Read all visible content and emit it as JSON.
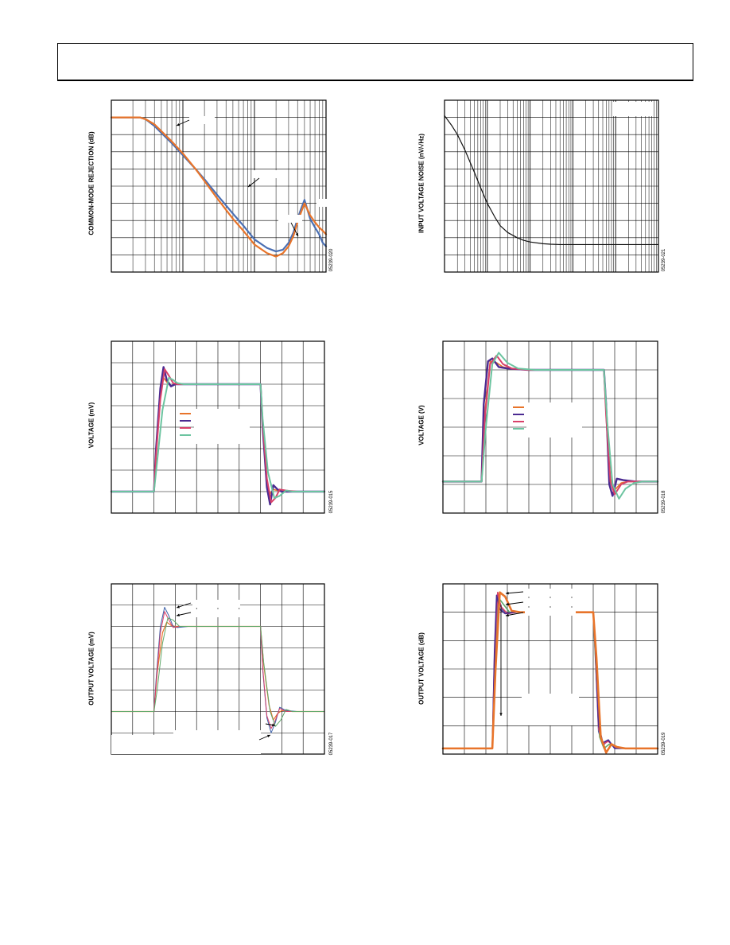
{
  "page": {
    "header": ""
  },
  "chart_data": [
    {
      "id": "cmr",
      "type": "line",
      "ylabel": "COMMON-MODE REJECTION (dB)",
      "figure_code": "05239-020",
      "xscale": "log",
      "grid": true,
      "xlim": [
        1,
        1000
      ],
      "ylim": [
        0,
        10
      ],
      "series": [
        {
          "color": "#4a6fb3",
          "width": 2.2,
          "x": [
            1,
            1.5,
            2,
            2.5,
            3,
            4,
            5,
            7,
            10,
            15,
            20,
            30,
            50,
            70,
            100,
            150,
            200,
            250,
            300,
            350,
            400,
            450,
            500,
            600,
            700,
            800,
            900,
            1000
          ],
          "y": [
            9,
            9,
            9,
            9,
            8.9,
            8.5,
            8.1,
            7.5,
            6.8,
            6,
            5.4,
            4.5,
            3.4,
            2.7,
            1.9,
            1.4,
            1.2,
            1.3,
            1.7,
            2.3,
            3.1,
            3.7,
            4.2,
            3.1,
            2.6,
            2.2,
            1.7,
            1.5
          ]
        },
        {
          "color": "#e8742a",
          "width": 2.2,
          "x": [
            1,
            1.5,
            2,
            2.5,
            3,
            4,
            5,
            7,
            10,
            15,
            20,
            30,
            50,
            70,
            100,
            150,
            200,
            250,
            300,
            350,
            400,
            450,
            500,
            600,
            700,
            800,
            900,
            1000
          ],
          "y": [
            9,
            9,
            9,
            9,
            8.9,
            8.6,
            8.2,
            7.6,
            6.9,
            6,
            5.3,
            4.3,
            3.1,
            2.4,
            1.6,
            1.1,
            0.9,
            1.1,
            1.5,
            2.1,
            2.9,
            3.5,
            4.0,
            3.3,
            2.9,
            2.6,
            2.4,
            2.2
          ]
        }
      ]
    },
    {
      "id": "noise",
      "type": "line",
      "ylabel": "INPUT VOLTAGE NOISE (nV/√Hz)",
      "figure_code": "05239-021",
      "xscale": "log",
      "grid": true,
      "xlim": [
        1,
        100000
      ],
      "ylim": [
        0,
        10
      ],
      "series": [
        {
          "color": "#111111",
          "width": 1.2,
          "x": [
            1,
            1.5,
            2,
            3,
            5,
            7,
            10,
            15,
            20,
            30,
            50,
            70,
            100,
            200,
            300,
            500,
            1000,
            3000,
            10000,
            30000,
            100000
          ],
          "y": [
            9.1,
            8.5,
            8.0,
            7.1,
            5.8,
            4.9,
            4.0,
            3.2,
            2.7,
            2.3,
            2.0,
            1.85,
            1.75,
            1.65,
            1.62,
            1.6,
            1.6,
            1.6,
            1.6,
            1.6,
            1.6
          ]
        }
      ]
    },
    {
      "id": "step-mv",
      "type": "line",
      "ylabel": "VOLTAGE (mV)",
      "figure_code": "05239-015",
      "grid": true,
      "xlim": [
        0,
        10
      ],
      "ylim": [
        0,
        8
      ],
      "series": [
        {
          "color": "#e8742a",
          "width": 1.6,
          "x": [
            0,
            2.0,
            2.1,
            2.3,
            2.45,
            2.6,
            2.8,
            3.0,
            3.5,
            7.0,
            7.1,
            7.3,
            7.45,
            7.6,
            7.8,
            8.0,
            8.5,
            10
          ],
          "y": [
            1.0,
            1.0,
            3.0,
            5.6,
            6.3,
            6.1,
            5.9,
            6.0,
            6.0,
            6.0,
            4.0,
            1.4,
            0.9,
            1.1,
            1.05,
            1.0,
            1.0,
            1.0
          ]
        },
        {
          "color": "#4b2a91",
          "width": 2.4,
          "x": [
            0,
            2.0,
            2.1,
            2.3,
            2.45,
            2.6,
            2.8,
            3.0,
            3.5,
            7.0,
            7.1,
            7.3,
            7.45,
            7.6,
            7.8,
            8.0,
            8.5,
            10
          ],
          "y": [
            1.0,
            1.0,
            3.0,
            5.8,
            6.8,
            6.2,
            5.9,
            6.0,
            6.0,
            6.0,
            4.0,
            1.2,
            0.4,
            1.3,
            1.1,
            1.0,
            1.0,
            1.0
          ]
        },
        {
          "color": "#d9416a",
          "width": 2.0,
          "x": [
            0,
            2.0,
            2.1,
            2.3,
            2.5,
            2.7,
            2.9,
            3.1,
            3.6,
            7.0,
            7.1,
            7.3,
            7.5,
            7.7,
            7.9,
            8.2,
            8.7,
            10
          ],
          "y": [
            1.0,
            1.0,
            2.7,
            5.3,
            6.7,
            6.4,
            6.05,
            6.0,
            6.0,
            6.0,
            4.2,
            1.6,
            0.5,
            0.7,
            1.1,
            1.05,
            1.0,
            1.0
          ]
        },
        {
          "color": "#6cc4a0",
          "width": 2.0,
          "x": [
            0,
            2.0,
            2.15,
            2.4,
            2.7,
            2.9,
            3.1,
            3.4,
            3.8,
            7.0,
            7.1,
            7.35,
            7.65,
            7.9,
            8.2,
            8.5,
            9.0,
            10
          ],
          "y": [
            1.0,
            1.0,
            2.4,
            4.8,
            6.3,
            6.2,
            6.05,
            6.0,
            6.0,
            6.0,
            4.4,
            1.9,
            0.7,
            0.8,
            1.05,
            1.0,
            1.0,
            1.0
          ]
        }
      ]
    },
    {
      "id": "step-v",
      "type": "line",
      "ylabel": "VOLTAGE (V)",
      "figure_code": "05239-018",
      "grid": true,
      "xlim": [
        0,
        10
      ],
      "ylim": [
        0,
        6
      ],
      "series": [
        {
          "color": "#e8742a",
          "width": 1.6,
          "x": [
            0,
            1.8,
            1.95,
            2.2,
            2.5,
            2.8,
            3.2,
            4.0,
            7.5,
            7.6,
            7.8,
            8.0,
            8.3,
            8.6,
            9.0,
            10
          ],
          "y": [
            1.1,
            1.1,
            3.5,
            5.3,
            5.25,
            5.1,
            5.05,
            5.0,
            5.0,
            3.5,
            1.2,
            0.8,
            1.05,
            1.1,
            1.1,
            1.1
          ]
        },
        {
          "color": "#4b2a91",
          "width": 2.4,
          "x": [
            0,
            1.8,
            1.9,
            2.1,
            2.3,
            2.6,
            3.0,
            4.0,
            7.5,
            7.6,
            7.75,
            7.9,
            8.1,
            8.4,
            9.0,
            10
          ],
          "y": [
            1.1,
            1.1,
            3.8,
            5.3,
            5.4,
            5.1,
            5.05,
            5.0,
            5.0,
            3.8,
            1.0,
            0.6,
            1.2,
            1.15,
            1.1,
            1.1
          ]
        },
        {
          "color": "#d9416a",
          "width": 2.0,
          "x": [
            0,
            1.8,
            1.95,
            2.2,
            2.5,
            2.8,
            3.2,
            4.0,
            7.5,
            7.6,
            7.8,
            8.0,
            8.3,
            8.6,
            9.0,
            10
          ],
          "y": [
            1.1,
            1.1,
            3.3,
            5.2,
            5.5,
            5.2,
            5.05,
            5.0,
            5.0,
            3.4,
            1.1,
            0.65,
            1.0,
            1.1,
            1.1,
            1.1
          ]
        },
        {
          "color": "#6cc4a0",
          "width": 2.0,
          "x": [
            0,
            1.8,
            2.0,
            2.3,
            2.6,
            3.0,
            3.5,
            4.3,
            7.5,
            7.65,
            7.9,
            8.2,
            8.5,
            8.9,
            9.3,
            10
          ],
          "y": [
            1.1,
            1.1,
            3.0,
            5.2,
            5.6,
            5.25,
            5.05,
            5.0,
            5.0,
            3.2,
            1.0,
            0.5,
            0.85,
            1.05,
            1.1,
            1.1
          ]
        }
      ]
    },
    {
      "id": "output-mv",
      "type": "line",
      "ylabel": "OUTPUT VOLTAGE (mV)",
      "figure_code": "05239-017",
      "grid": true,
      "xlim": [
        0,
        10
      ],
      "ylim": [
        0,
        8
      ],
      "series": [
        {
          "color": "#e8742a",
          "width": 1.2,
          "x": [
            0,
            2.0,
            2.15,
            2.4,
            2.6,
            2.8,
            3.0,
            3.5,
            7.0,
            7.15,
            7.4,
            7.6,
            7.8,
            8.0,
            8.5,
            10
          ],
          "y": [
            2.0,
            2.0,
            3.8,
            5.7,
            6.2,
            6.05,
            6.0,
            6.0,
            6.0,
            4.2,
            2.3,
            1.6,
            1.9,
            2.05,
            2.0,
            2.0
          ]
        },
        {
          "color": "#3b5fa8",
          "width": 1.0,
          "x": [
            0,
            2.0,
            2.1,
            2.3,
            2.5,
            2.7,
            2.9,
            3.1,
            3.6,
            7.0,
            7.1,
            7.3,
            7.5,
            7.7,
            7.9,
            8.2,
            8.7,
            10
          ],
          "y": [
            2.0,
            2.0,
            3.5,
            6.0,
            6.9,
            6.5,
            6.0,
            5.95,
            6.0,
            6.0,
            4.0,
            1.7,
            1.0,
            1.5,
            2.2,
            2.05,
            2.0,
            2.0
          ]
        },
        {
          "color": "#d9416a",
          "width": 1.0,
          "x": [
            0,
            2.0,
            2.1,
            2.3,
            2.5,
            2.7,
            2.9,
            3.2,
            3.8,
            7.0,
            7.1,
            7.3,
            7.5,
            7.7,
            7.9,
            8.2,
            8.7,
            10
          ],
          "y": [
            2.0,
            2.0,
            3.3,
            5.7,
            6.7,
            6.3,
            5.95,
            6.0,
            6.0,
            6.0,
            4.1,
            1.8,
            1.2,
            1.6,
            2.15,
            2.0,
            2.0,
            2.0
          ]
        },
        {
          "color": "#5fa86a",
          "width": 1.0,
          "x": [
            0,
            2.0,
            2.15,
            2.4,
            2.65,
            2.9,
            3.2,
            3.6,
            4.0,
            7.0,
            7.15,
            7.45,
            7.7,
            7.95,
            8.2,
            8.5,
            9.0,
            10
          ],
          "y": [
            2.0,
            2.0,
            3.0,
            5.2,
            6.4,
            6.3,
            6.0,
            6.0,
            6.0,
            6.0,
            4.3,
            2.0,
            1.3,
            1.6,
            2.1,
            2.0,
            2.0,
            2.0
          ]
        }
      ]
    },
    {
      "id": "output-db",
      "type": "line",
      "ylabel": "OUTPUT VOLTAGE (dB)",
      "figure_code": "05239-019",
      "grid": true,
      "xlim": [
        0,
        10
      ],
      "ylim": [
        0,
        6
      ],
      "series": [
        {
          "color": "#3b5fa8",
          "width": 1.6,
          "x": [
            0,
            2.3,
            2.4,
            2.55,
            2.75,
            3.0,
            3.4,
            4.2,
            7.0,
            7.1,
            7.25,
            7.45,
            7.7,
            8.0,
            8.5,
            10
          ],
          "y": [
            0.2,
            0.2,
            3.2,
            5.6,
            5.1,
            4.95,
            5.0,
            5.0,
            5.0,
            3.5,
            0.8,
            0.3,
            0.5,
            0.2,
            0.2,
            0.2
          ]
        },
        {
          "color": "#5fa86a",
          "width": 1.6,
          "x": [
            0,
            2.3,
            2.4,
            2.6,
            2.8,
            3.1,
            3.5,
            4.2,
            7.0,
            7.1,
            7.3,
            7.5,
            7.75,
            8.05,
            8.5,
            10
          ],
          "y": [
            0.2,
            0.2,
            3.0,
            5.5,
            5.3,
            5.0,
            5.0,
            5.0,
            5.0,
            3.4,
            0.6,
            0.2,
            0.35,
            0.25,
            0.2,
            0.2
          ]
        },
        {
          "color": "#d9416a",
          "width": 1.6,
          "x": [
            0,
            2.3,
            2.4,
            2.55,
            2.7,
            3.0,
            3.4,
            4.2,
            7.0,
            7.1,
            7.25,
            7.45,
            7.7,
            8.0,
            8.5,
            10
          ],
          "y": [
            0.2,
            0.2,
            3.4,
            5.7,
            5.2,
            4.95,
            5.0,
            5.0,
            5.0,
            3.6,
            0.9,
            0.35,
            0.45,
            0.25,
            0.2,
            0.2
          ]
        },
        {
          "color": "#4b2a91",
          "width": 1.6,
          "x": [
            0,
            2.3,
            2.4,
            2.5,
            2.65,
            2.9,
            3.3,
            4.2,
            7.0,
            7.1,
            7.25,
            7.45,
            7.7,
            8.0,
            8.5,
            10
          ],
          "y": [
            0.2,
            0.2,
            3.6,
            5.6,
            5.1,
            4.95,
            5.0,
            5.0,
            5.0,
            3.7,
            1.0,
            0.4,
            0.5,
            0.2,
            0.2,
            0.2
          ]
        },
        {
          "color": "#e8742a",
          "width": 2.6,
          "x": [
            0,
            2.3,
            2.45,
            2.65,
            2.9,
            3.2,
            3.6,
            4.2,
            7.0,
            7.15,
            7.35,
            7.6,
            7.85,
            8.1,
            8.5,
            10
          ],
          "y": [
            0.2,
            0.2,
            3.0,
            5.7,
            5.55,
            5.05,
            5.0,
            5.0,
            5.0,
            3.4,
            0.6,
            0.05,
            0.35,
            0.25,
            0.2,
            0.2
          ]
        }
      ]
    }
  ]
}
